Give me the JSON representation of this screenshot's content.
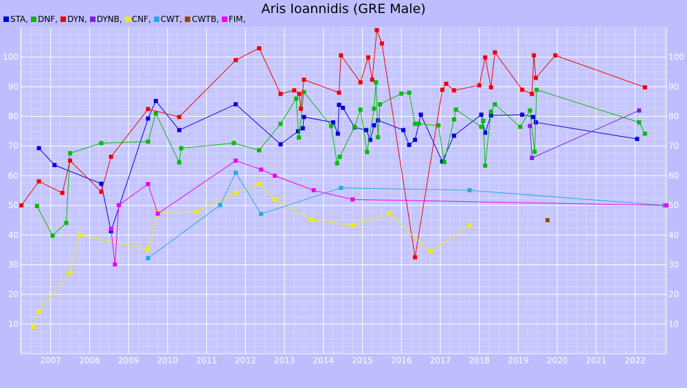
{
  "chart_data": {
    "type": "line",
    "title": "Aris Ioannidis (GRE Male)",
    "xlim": [
      2006.23,
      2022.8
    ],
    "ylim": [
      0,
      110
    ],
    "yticks": [
      10,
      20,
      30,
      40,
      50,
      60,
      70,
      80,
      90,
      100
    ],
    "xticks": [
      2007,
      2008,
      2009,
      2010,
      2011,
      2012,
      2013,
      2014,
      2015,
      2016,
      2017,
      2018,
      2019,
      2020,
      2021,
      2022
    ],
    "grid": true,
    "legend_position": "top-left",
    "series": [
      {
        "name": "STA",
        "color": "#0000dd",
        "points": [
          [
            2006.7,
            69.3
          ],
          [
            2007.1,
            63.6
          ],
          [
            2008.3,
            57.3
          ],
          [
            2008.55,
            41.3
          ],
          [
            2009.5,
            79.3
          ],
          [
            2009.7,
            85.2
          ],
          [
            2010.3,
            75.4
          ],
          [
            2011.75,
            84.1
          ],
          [
            2012.9,
            70.6
          ],
          [
            2013.35,
            75.0
          ],
          [
            2013.47,
            76.0
          ],
          [
            2013.5,
            79.8
          ],
          [
            2014.25,
            78.0
          ],
          [
            2014.37,
            74.2
          ],
          [
            2014.4,
            83.9
          ],
          [
            2014.5,
            82.9
          ],
          [
            2014.8,
            76.3
          ],
          [
            2015.1,
            75.4
          ],
          [
            2015.2,
            72.1
          ],
          [
            2015.3,
            77.0
          ],
          [
            2015.4,
            78.7
          ],
          [
            2016.05,
            75.4
          ],
          [
            2016.2,
            70.4
          ],
          [
            2016.35,
            72.1
          ],
          [
            2016.5,
            80.6
          ],
          [
            2017.05,
            64.8
          ],
          [
            2017.35,
            73.5
          ],
          [
            2018.05,
            80.6
          ],
          [
            2018.15,
            74.5
          ],
          [
            2018.3,
            80.3
          ],
          [
            2019.1,
            80.6
          ],
          [
            2019.38,
            79.8
          ],
          [
            2019.45,
            78.0
          ],
          [
            2022.05,
            72.4
          ]
        ]
      },
      {
        "name": "DNF",
        "color": "#00bb00",
        "points": [
          [
            2006.65,
            49.8
          ],
          [
            2007.05,
            39.8
          ],
          [
            2007.4,
            44.1
          ],
          [
            2007.5,
            67.6
          ],
          [
            2008.3,
            71.0
          ],
          [
            2009.5,
            71.5
          ],
          [
            2009.7,
            81.0
          ],
          [
            2010.3,
            64.5
          ],
          [
            2010.35,
            69.3
          ],
          [
            2011.7,
            71.0
          ],
          [
            2012.35,
            68.6
          ],
          [
            2012.9,
            77.5
          ],
          [
            2013.3,
            86.0
          ],
          [
            2013.37,
            72.9
          ],
          [
            2013.5,
            88.2
          ],
          [
            2014.2,
            76.8
          ],
          [
            2014.35,
            64.2
          ],
          [
            2014.42,
            66.4
          ],
          [
            2014.8,
            76.5
          ],
          [
            2014.95,
            82.3
          ],
          [
            2015.12,
            68.0
          ],
          [
            2015.3,
            82.6
          ],
          [
            2015.35,
            91.5
          ],
          [
            2015.4,
            73.0
          ],
          [
            2015.45,
            84.1
          ],
          [
            2016.0,
            87.7
          ],
          [
            2016.2,
            88.0
          ],
          [
            2016.35,
            77.5
          ],
          [
            2016.45,
            77.5
          ],
          [
            2016.95,
            77.0
          ],
          [
            2017.1,
            64.6
          ],
          [
            2017.35,
            79.0
          ],
          [
            2017.4,
            82.3
          ],
          [
            2018.05,
            76.5
          ],
          [
            2018.1,
            78.5
          ],
          [
            2018.15,
            63.4
          ],
          [
            2018.3,
            81.6
          ],
          [
            2018.4,
            84.1
          ],
          [
            2019.05,
            76.5
          ],
          [
            2019.3,
            82.0
          ],
          [
            2019.42,
            68.1
          ],
          [
            2019.47,
            89.0
          ],
          [
            2022.1,
            78.0
          ],
          [
            2022.25,
            74.2
          ]
        ]
      },
      {
        "name": "DYN",
        "color": "#ee0000",
        "points": [
          [
            2006.25,
            50.0
          ],
          [
            2006.7,
            58.1
          ],
          [
            2007.3,
            54.2
          ],
          [
            2007.5,
            65.1
          ],
          [
            2008.3,
            54.6
          ],
          [
            2008.55,
            66.4
          ],
          [
            2009.5,
            82.5
          ],
          [
            2010.3,
            79.8
          ],
          [
            2011.75,
            99.0
          ],
          [
            2012.35,
            103.0
          ],
          [
            2012.9,
            87.6
          ],
          [
            2013.25,
            88.8
          ],
          [
            2013.38,
            87.6
          ],
          [
            2013.42,
            82.6
          ],
          [
            2013.5,
            92.4
          ],
          [
            2014.4,
            88.0
          ],
          [
            2014.45,
            100.6
          ],
          [
            2014.95,
            91.5
          ],
          [
            2015.15,
            99.9
          ],
          [
            2015.25,
            92.4
          ],
          [
            2015.37,
            109.1
          ],
          [
            2015.5,
            104.6
          ],
          [
            2016.35,
            32.5
          ],
          [
            2017.05,
            89.0
          ],
          [
            2017.15,
            91.0
          ],
          [
            2017.35,
            88.8
          ],
          [
            2018.0,
            90.5
          ],
          [
            2018.15,
            99.9
          ],
          [
            2018.3,
            89.8
          ],
          [
            2018.4,
            101.6
          ],
          [
            2019.1,
            89.0
          ],
          [
            2019.35,
            87.6
          ],
          [
            2019.4,
            100.6
          ],
          [
            2019.45,
            93.0
          ],
          [
            2019.95,
            100.6
          ],
          [
            2022.25,
            89.8
          ]
        ]
      },
      {
        "name": "DYNB",
        "color": "#7722dd",
        "points": [
          [
            2019.3,
            76.8
          ],
          [
            2019.35,
            66.0
          ],
          [
            2022.1,
            82.0
          ]
        ]
      },
      {
        "name": "CNF",
        "color": "#eeee00",
        "points": [
          [
            2006.55,
            9.0
          ],
          [
            2006.7,
            14.2
          ],
          [
            2007.5,
            27.2
          ],
          [
            2007.75,
            40.0
          ],
          [
            2009.5,
            35.2
          ],
          [
            2009.75,
            47.7
          ],
          [
            2010.75,
            48.0
          ],
          [
            2011.75,
            54.1
          ],
          [
            2012.35,
            57.3
          ],
          [
            2012.75,
            52.0
          ],
          [
            2013.7,
            45.1
          ],
          [
            2014.75,
            43.2
          ],
          [
            2015.7,
            47.2
          ],
          [
            2016.75,
            34.3
          ],
          [
            2017.75,
            43.2
          ]
        ]
      },
      {
        "name": "CWT",
        "color": "#22aadd",
        "points": [
          [
            2009.5,
            32.2
          ],
          [
            2011.35,
            50.1
          ],
          [
            2011.75,
            61.0
          ],
          [
            2012.4,
            47.1
          ],
          [
            2014.45,
            55.9
          ],
          [
            2017.75,
            55.1
          ],
          [
            2022.75,
            50.0
          ]
        ]
      },
      {
        "name": "CWTB",
        "color": "#994400",
        "points": [
          [
            2019.75,
            45.0
          ]
        ]
      },
      {
        "name": "FIM",
        "color": "#ee00ee",
        "points": [
          [
            2008.55,
            42.1
          ],
          [
            2008.65,
            30.1
          ],
          [
            2008.75,
            50.1
          ],
          [
            2009.5,
            57.2
          ],
          [
            2009.75,
            47.2
          ],
          [
            2011.75,
            65.1
          ],
          [
            2012.4,
            62.1
          ],
          [
            2012.75,
            60.0
          ],
          [
            2013.75,
            55.1
          ],
          [
            2014.75,
            52.0
          ],
          [
            2022.8,
            50.0
          ]
        ]
      }
    ]
  }
}
